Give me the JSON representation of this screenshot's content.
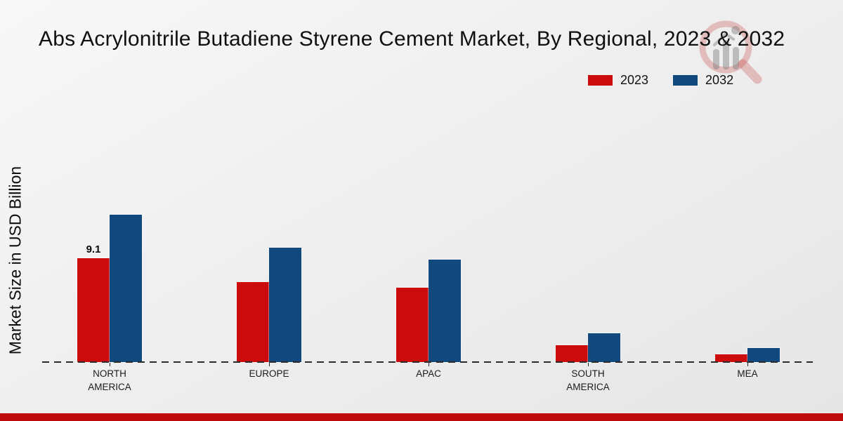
{
  "header": {
    "title": "Abs Acrylonitrile Butadiene Styrene Cement Market, By Regional, 2023 & 2032"
  },
  "chart_data": {
    "type": "bar",
    "title": "Abs Acrylonitrile Butadiene Styrene Cement Market, By Regional, 2023 & 2032",
    "xlabel": "",
    "ylabel": "Market Size in USD Billion",
    "categories": [
      "NORTH AMERICA",
      "EUROPE",
      "APAC",
      "SOUTH AMERICA",
      "MEA"
    ],
    "category_lines": [
      [
        "NORTH",
        "AMERICA"
      ],
      [
        "EUROPE"
      ],
      [
        "APAC"
      ],
      [
        "SOUTH",
        "AMERICA"
      ],
      [
        "MEA"
      ]
    ],
    "series": [
      {
        "name": "2023",
        "color": "#cc0b0c",
        "values": [
          9.1,
          7.0,
          6.5,
          1.5,
          0.7
        ]
      },
      {
        "name": "2032",
        "color": "#11497e",
        "values": [
          12.9,
          10.0,
          9.0,
          2.5,
          1.2
        ]
      }
    ],
    "data_labels": [
      {
        "text": "9.1",
        "series_index": 0,
        "category_index": 0
      }
    ],
    "ylim": [
      0,
      13.5
    ],
    "grid": false,
    "legend_position": "top-right",
    "baseline_style": "dashed"
  },
  "footer": {
    "accent_color": "#c00b0c"
  }
}
